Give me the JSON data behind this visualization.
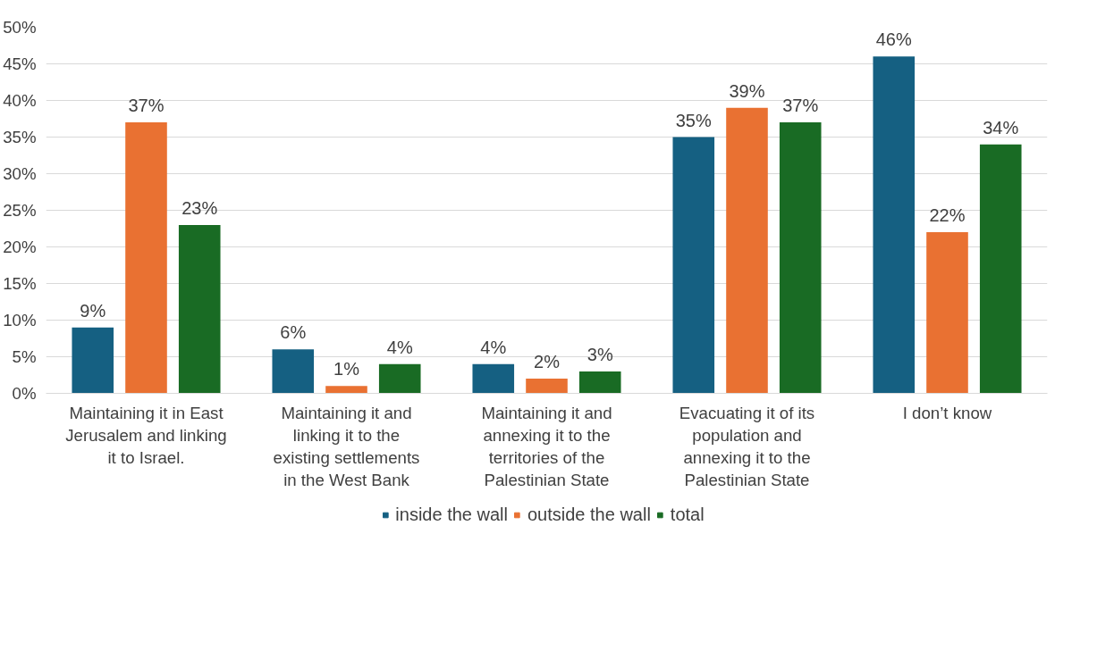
{
  "chart_data": {
    "type": "bar",
    "categories": [
      "Maintaining it in East Jerusalem and linking it to Israel.",
      "Maintaining it and linking it to the existing settlements in the West Bank",
      "Maintaining it and annexing it to the territories of the Palestinian State",
      "Evacuating it of its population and annexing it to the Palestinian State",
      "I don’t know"
    ],
    "series": [
      {
        "name": "inside the wall",
        "color": "#156082",
        "values": [
          9,
          6,
          4,
          35,
          46
        ],
        "value_labels": [
          "9%",
          "6%",
          "4%",
          "35%",
          "46%"
        ]
      },
      {
        "name": "outside the wall",
        "color": "#e97132",
        "values": [
          37,
          1,
          2,
          39,
          22
        ],
        "value_labels": [
          "37%",
          "1%",
          "2%",
          "39%",
          "22%"
        ]
      },
      {
        "name": "total",
        "color": "#196b24",
        "values": [
          23,
          4,
          3,
          37,
          34
        ],
        "value_labels": [
          "23%",
          "4%",
          "3%",
          "37%",
          "34%"
        ]
      }
    ],
    "ylim": [
      0,
      50
    ],
    "yticks": [
      {
        "value": 0,
        "label": "0%"
      },
      {
        "value": 5,
        "label": "5%"
      },
      {
        "value": 10,
        "label": "10%"
      },
      {
        "value": 15,
        "label": "15%"
      },
      {
        "value": 20,
        "label": "20%"
      },
      {
        "value": 25,
        "label": "25%"
      },
      {
        "value": 30,
        "label": "30%"
      },
      {
        "value": 35,
        "label": "35%"
      },
      {
        "value": 40,
        "label": "40%"
      },
      {
        "value": 45,
        "label": "45%"
      },
      {
        "value": 50,
        "label": "50%"
      }
    ],
    "grid": "y",
    "legend": "bottom"
  }
}
